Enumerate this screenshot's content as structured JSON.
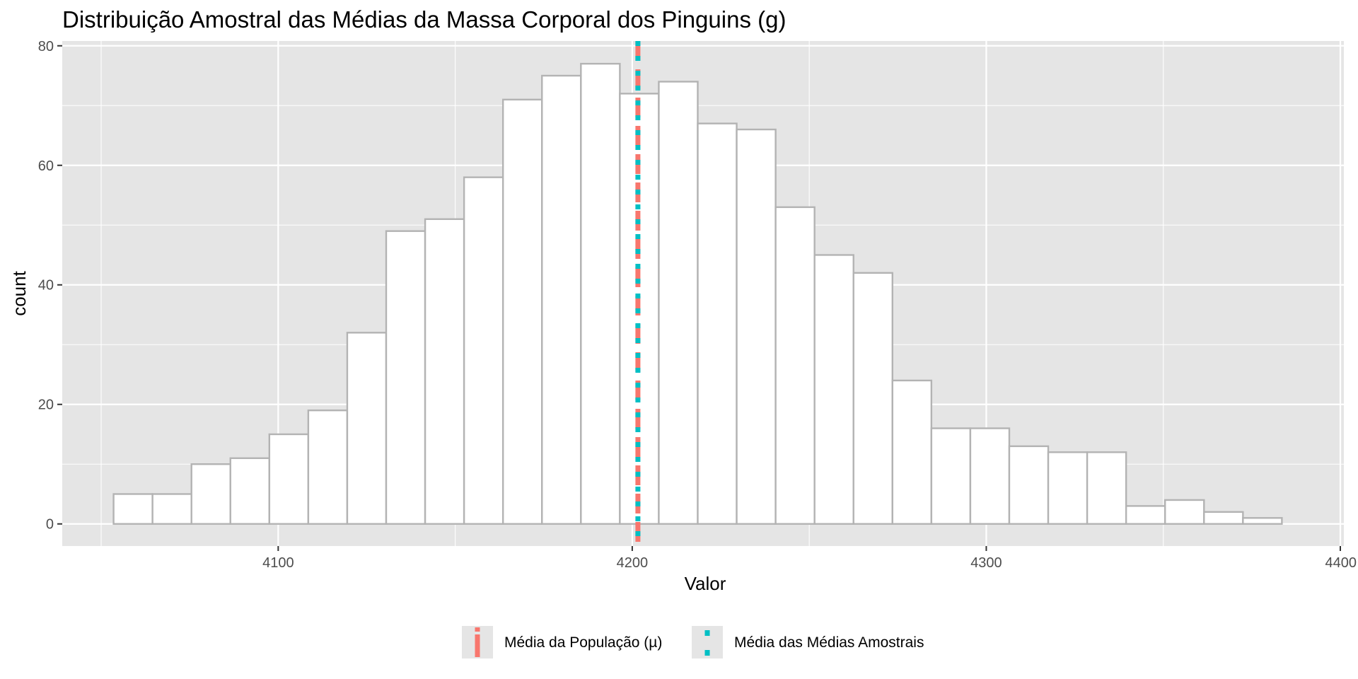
{
  "chart_data": {
    "type": "bar",
    "title": "Distribuição Amostral das Médias da Massa Corporal dos Pinguins (g)",
    "xlabel": "Valor",
    "ylabel": "count",
    "xlim": [
      4039,
      4401
    ],
    "ylim": [
      -3.7,
      80.8
    ],
    "x_ticks": [
      4100,
      4200,
      4300,
      4400
    ],
    "x_tick_labels": [
      "4100",
      "4200",
      "4300",
      "4400"
    ],
    "y_ticks": [
      0,
      20,
      40,
      60,
      80
    ],
    "y_tick_labels": [
      "0",
      "20",
      "40",
      "60",
      "80"
    ],
    "grid": true,
    "bin_width": 11,
    "bins": [
      {
        "x0": 4053.5,
        "x1": 4064.5,
        "count": 5
      },
      {
        "x0": 4064.5,
        "x1": 4075.5,
        "count": 5
      },
      {
        "x0": 4075.5,
        "x1": 4086.5,
        "count": 10
      },
      {
        "x0": 4086.5,
        "x1": 4097.5,
        "count": 11
      },
      {
        "x0": 4097.5,
        "x1": 4108.5,
        "count": 15
      },
      {
        "x0": 4108.5,
        "x1": 4119.5,
        "count": 19
      },
      {
        "x0": 4119.5,
        "x1": 4130.5,
        "count": 32
      },
      {
        "x0": 4130.5,
        "x1": 4141.5,
        "count": 49
      },
      {
        "x0": 4141.5,
        "x1": 4152.5,
        "count": 51
      },
      {
        "x0": 4152.5,
        "x1": 4163.5,
        "count": 58
      },
      {
        "x0": 4163.5,
        "x1": 4174.5,
        "count": 71
      },
      {
        "x0": 4174.5,
        "x1": 4185.5,
        "count": 75
      },
      {
        "x0": 4185.5,
        "x1": 4196.5,
        "count": 77
      },
      {
        "x0": 4196.5,
        "x1": 4207.5,
        "count": 72
      },
      {
        "x0": 4207.5,
        "x1": 4218.5,
        "count": 74
      },
      {
        "x0": 4218.5,
        "x1": 4229.5,
        "count": 67
      },
      {
        "x0": 4229.5,
        "x1": 4240.5,
        "count": 66
      },
      {
        "x0": 4240.5,
        "x1": 4251.5,
        "count": 53
      },
      {
        "x0": 4251.5,
        "x1": 4262.5,
        "count": 45
      },
      {
        "x0": 4262.5,
        "x1": 4273.5,
        "count": 42
      },
      {
        "x0": 4273.5,
        "x1": 4284.5,
        "count": 24
      },
      {
        "x0": 4284.5,
        "x1": 4295.5,
        "count": 16
      },
      {
        "x0": 4295.5,
        "x1": 4306.5,
        "count": 16
      },
      {
        "x0": 4306.5,
        "x1": 4317.5,
        "count": 13
      },
      {
        "x0": 4317.5,
        "x1": 4328.5,
        "count": 12
      },
      {
        "x0": 4328.5,
        "x1": 4339.5,
        "count": 12
      },
      {
        "x0": 4339.5,
        "x1": 4350.5,
        "count": 3
      },
      {
        "x0": 4350.5,
        "x1": 4361.5,
        "count": 4
      },
      {
        "x0": 4361.5,
        "x1": 4372.5,
        "count": 2
      },
      {
        "x0": 4372.5,
        "x1": 4383.5,
        "count": 1
      }
    ],
    "vlines": [
      {
        "name": "Média da População (µ)",
        "x": 4201.6,
        "color": "#F8766D",
        "dash": "long-dash"
      },
      {
        "name": "Média das Médias Amostrais",
        "x": 4201.6,
        "color": "#00BFC4",
        "dash": "dotted"
      }
    ],
    "legend": {
      "position": "bottom",
      "entries": [
        "Média da População (µ)",
        "Média das Médias Amostrais"
      ]
    },
    "colors": {
      "panel_background": "#E5E5E5",
      "grid": "#FFFFFF",
      "bar_fill": "#FFFFFF",
      "bar_outline": "#B3B3B3",
      "population_mean": "#F8766D",
      "sample_mean": "#00BFC4"
    }
  }
}
